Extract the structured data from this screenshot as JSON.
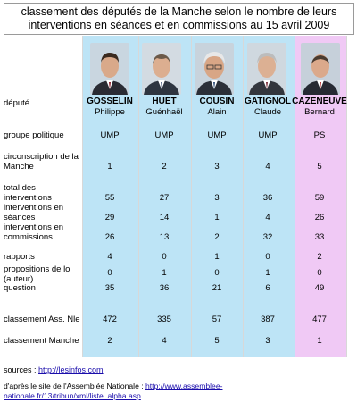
{
  "title_lines": [
    "classement des députés de la Manche selon le nombre de leurs",
    "interventions en séances et en commissions au 15 avril 2009"
  ],
  "colors": {
    "blue": "#bde4f6",
    "pink": "#f0c9f5"
  },
  "deputies": [
    {
      "name": "GOSSELIN",
      "first": "Philippe",
      "party": "UMP",
      "circ": "1",
      "total": "55",
      "seances": "29",
      "commissions": "26",
      "rapports": "4",
      "propositions": "0",
      "question": "35",
      "an_rank": "472",
      "manche_rank": "2",
      "color": "blue",
      "photo": "portrait-dark-hair"
    },
    {
      "name": "HUET",
      "first": "Guénhaël",
      "party": "UMP",
      "circ": "2",
      "total": "27",
      "seances": "14",
      "commissions": "13",
      "rapports": "0",
      "propositions": "1",
      "question": "36",
      "an_rank": "335",
      "manche_rank": "4",
      "color": "blue",
      "photo": "portrait-bald"
    },
    {
      "name": "COUSIN",
      "first": "Alain",
      "party": "UMP",
      "circ": "3",
      "total": "3",
      "seances": "1",
      "commissions": "2",
      "rapports": "1",
      "propositions": "0",
      "question": "21",
      "an_rank": "57",
      "manche_rank": "5",
      "color": "blue",
      "photo": "portrait-white-hair"
    },
    {
      "name": "GATIGNOL",
      "first": "Claude",
      "party": "UMP",
      "circ": "4",
      "total": "36",
      "seances": "4",
      "commissions": "32",
      "rapports": "0",
      "propositions": "1",
      "question": "6",
      "an_rank": "387",
      "manche_rank": "3",
      "color": "blue",
      "photo": "portrait-grey-hair"
    },
    {
      "name": "CAZENEUVE",
      "first": "Bernard",
      "party": "PS",
      "circ": "5",
      "total": "59",
      "seances": "26",
      "commissions": "33",
      "rapports": "2",
      "propositions": "0",
      "question": "49",
      "an_rank": "477",
      "manche_rank": "1",
      "color": "pink",
      "photo": "portrait-bald-glasses"
    }
  ],
  "row_labels": {
    "depute": "député",
    "party": "groupe politique",
    "circ": [
      "circonscription de la",
      "Manche"
    ],
    "total": [
      "total des",
      "interventions"
    ],
    "seances": [
      "interventions en",
      "séances"
    ],
    "commissions": [
      "interventions en",
      "commissions"
    ],
    "rapports": "rapports",
    "propositions": [
      "propositions de loi",
      "(auteur)"
    ],
    "question": "question",
    "an_rank": "classement Ass. Nle",
    "manche_rank": "classement Manche"
  },
  "footer": {
    "sources_label": "sources : ",
    "sources_link": "http://lesinfos.com",
    "after_label": "d'après le site de l'Assemblée Nationale : ",
    "after_link": "http://www.assemblee-nationale.fr/13/tribun/xml/liste_alpha.asp"
  }
}
